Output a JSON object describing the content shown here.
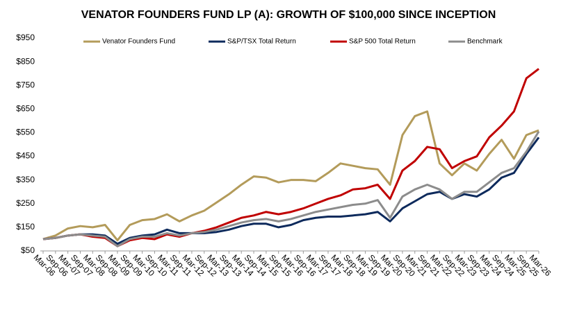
{
  "chart_data": {
    "type": "line",
    "title": "VENATOR FOUNDERS FUND LP (A):  GROWTH OF $100,000 SINCE INCEPTION",
    "categories": [
      "Mar-06",
      "Sep-06",
      "Mar-07",
      "Sep-07",
      "Mar-08",
      "Sep-08",
      "Mar-09",
      "Sep-09",
      "Mar-10",
      "Sep-10",
      "Mar-11",
      "Sep-11",
      "Mar-12",
      "Sep-12",
      "Mar-13",
      "Sep-13",
      "Mar-14",
      "Sep-14",
      "Mar-15",
      "Sep-15",
      "Mar-16",
      "Sep-16",
      "Mar-17",
      "Sep-17",
      "Mar-18",
      "Sep-18",
      "Mar-19",
      "Sep-19",
      "Mar-20",
      "Sep-20",
      "Mar-21",
      "Sep-21",
      "Mar-22",
      "Sep-22",
      "Mar-23",
      "Sep-23",
      "Mar-24",
      "Sep-24",
      "Mar-25",
      "Sep-25",
      "Mar-26"
    ],
    "series": [
      {
        "name": "Venator Founders Fund",
        "color": "#b39b5a",
        "values": [
          100,
          115,
          145,
          155,
          150,
          160,
          95,
          160,
          180,
          185,
          205,
          175,
          200,
          220,
          255,
          290,
          330,
          365,
          360,
          340,
          350,
          350,
          345,
          380,
          420,
          410,
          400,
          395,
          330,
          540,
          620,
          640,
          420,
          370,
          420,
          390,
          460,
          520,
          440,
          540,
          560
        ]
      },
      {
        "name": "S&P/TSX Total Return",
        "color": "#0d2a5c",
        "values": [
          100,
          105,
          115,
          120,
          120,
          115,
          80,
          105,
          115,
          120,
          140,
          125,
          125,
          125,
          130,
          140,
          155,
          165,
          165,
          150,
          160,
          180,
          190,
          195,
          195,
          200,
          205,
          215,
          175,
          230,
          260,
          290,
          300,
          270,
          290,
          280,
          310,
          360,
          380,
          460,
          530
        ]
      },
      {
        "name": "S&P 500 Total Return",
        "color": "#c00000",
        "values": [
          100,
          105,
          115,
          120,
          110,
          105,
          70,
          95,
          105,
          100,
          120,
          110,
          125,
          135,
          150,
          170,
          190,
          200,
          215,
          205,
          215,
          230,
          250,
          270,
          285,
          310,
          315,
          330,
          270,
          390,
          430,
          490,
          480,
          400,
          430,
          450,
          530,
          580,
          640,
          780,
          820
        ]
      },
      {
        "name": "Benchmark",
        "color": "#8c8c8c",
        "values": [
          100,
          105,
          115,
          120,
          115,
          110,
          70,
          100,
          110,
          110,
          125,
          115,
          125,
          130,
          140,
          155,
          170,
          180,
          185,
          175,
          185,
          200,
          215,
          225,
          235,
          245,
          250,
          265,
          190,
          280,
          310,
          330,
          310,
          270,
          300,
          300,
          340,
          380,
          400,
          470,
          555
        ]
      }
    ],
    "ylim": [
      50,
      950
    ],
    "yticks": [
      {
        "value": 50,
        "label": "$50"
      },
      {
        "value": 150,
        "label": "$150"
      },
      {
        "value": 250,
        "label": "$250"
      },
      {
        "value": 350,
        "label": "$350"
      },
      {
        "value": 450,
        "label": "$450"
      },
      {
        "value": 550,
        "label": "$550"
      },
      {
        "value": 650,
        "label": "$650"
      },
      {
        "value": 750,
        "label": "$750"
      },
      {
        "value": 850,
        "label": "$850"
      },
      {
        "value": 950,
        "label": "$950"
      }
    ],
    "grid": false,
    "legend": "top"
  }
}
